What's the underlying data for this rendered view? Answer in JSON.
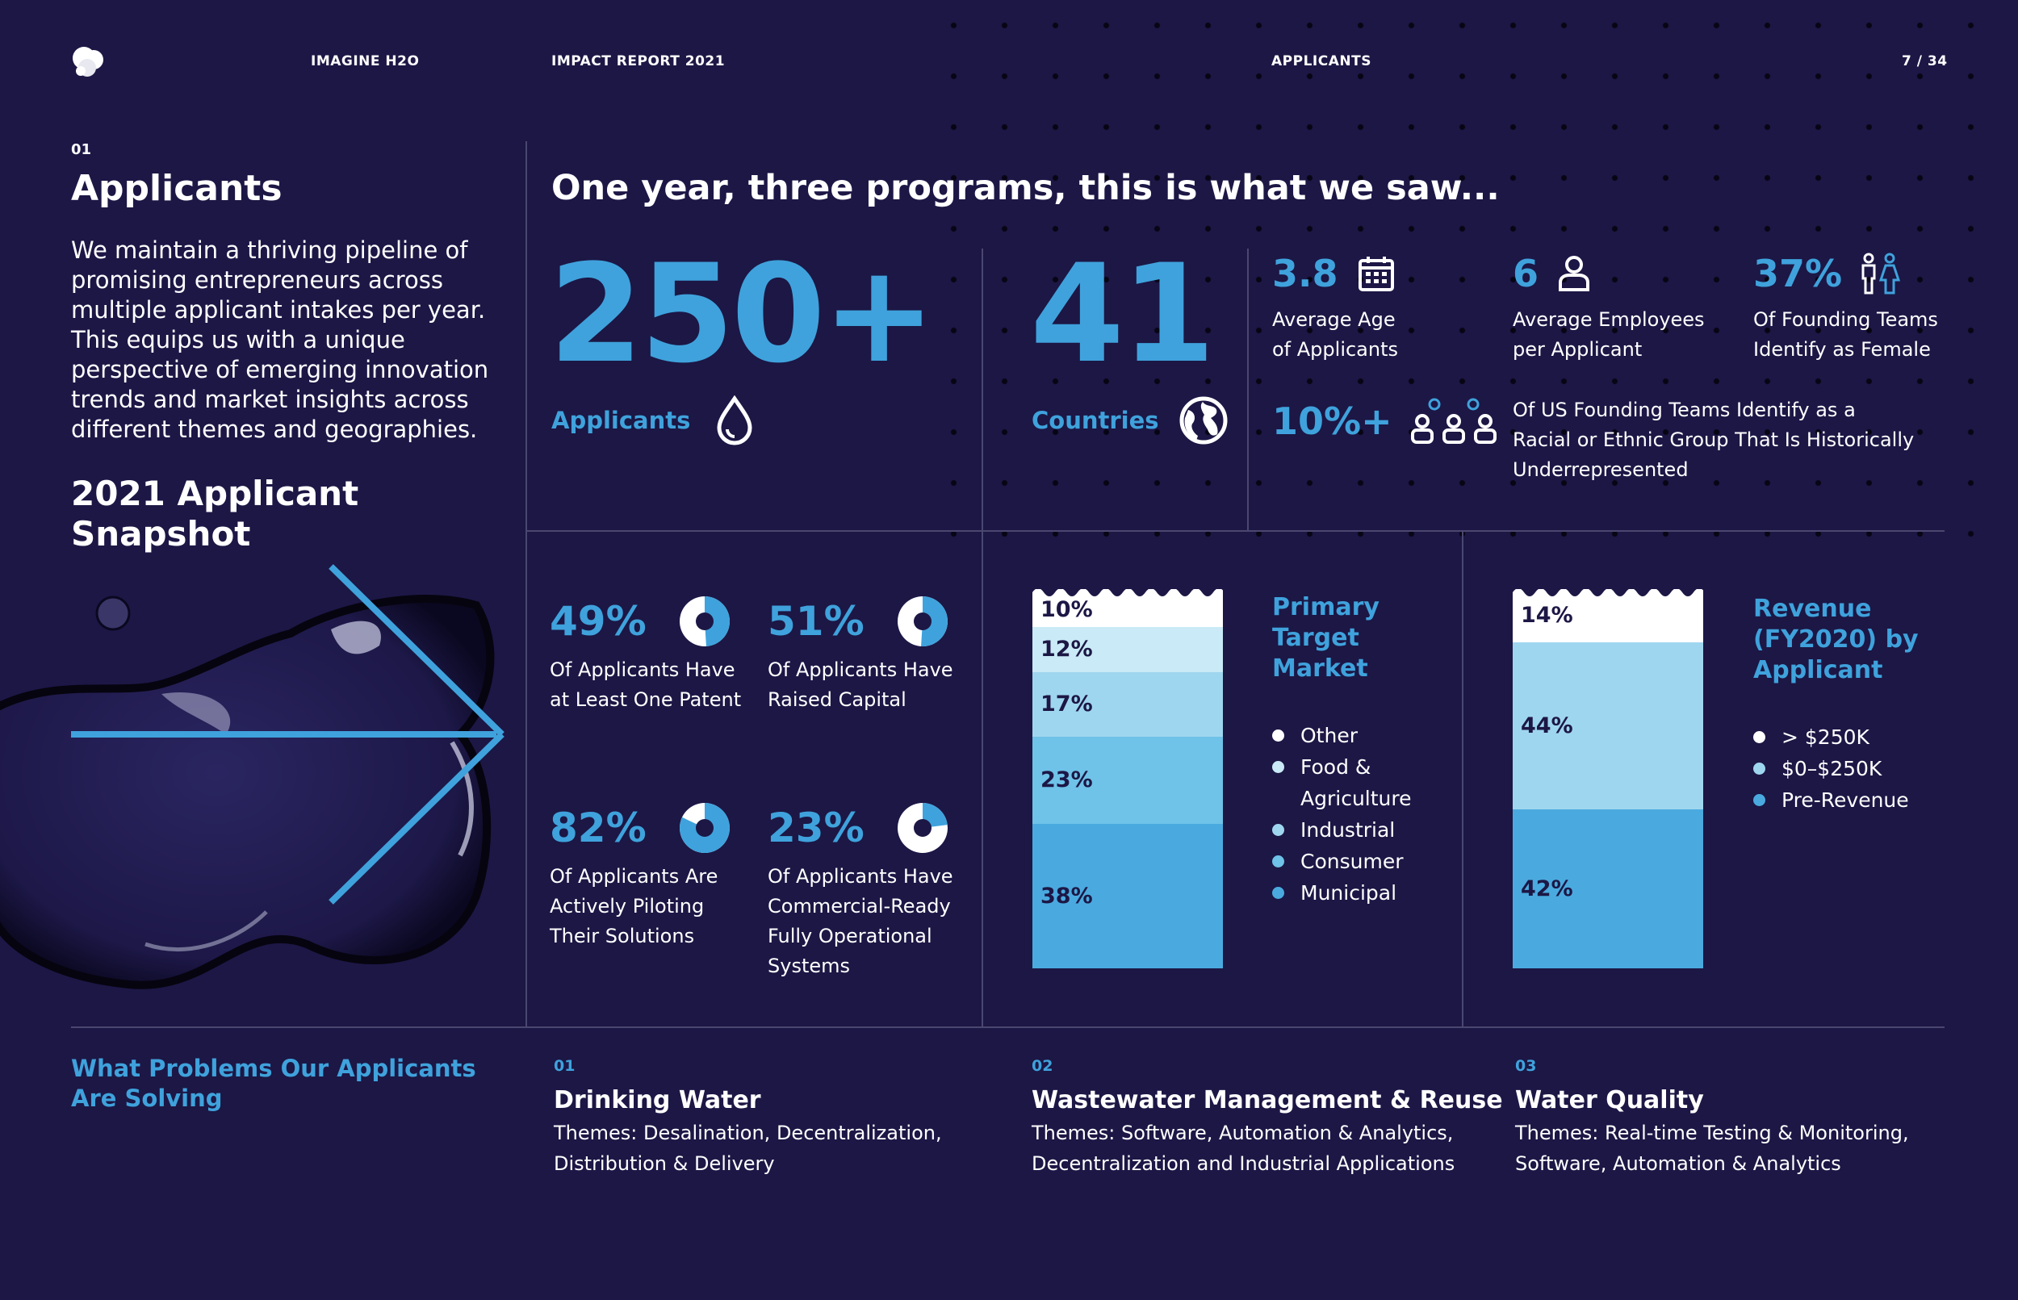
{
  "header": {
    "brand": "IMAGINE H2O",
    "report": "IMPACT REPORT 2021",
    "section": "APPLICANTS",
    "page": "7 / 34"
  },
  "sidebar": {
    "section_number": "01",
    "title": "Applicants",
    "intro": "We maintain a thriving pipeline of promising entrepreneurs across multiple applicant intakes per year. This equips us with a unique perspective of emerging innovation trends and market insights across different themes and geographies.",
    "snapshot_line1": "2021 Applicant",
    "snapshot_line2": "Snapshot"
  },
  "main_title": "One year, three programs, this is what we saw...",
  "headline_stats": {
    "applicants": {
      "value": "250+",
      "label": "Applicants",
      "icon": "water-drop-icon"
    },
    "countries": {
      "value": "41",
      "label": "Countries",
      "icon": "globe-icon"
    }
  },
  "small_stats": {
    "age": {
      "value": "3.8",
      "line1": "Average Age",
      "line2": "of Applicants",
      "icon": "calendar-icon"
    },
    "employees": {
      "value": "6",
      "line1": "Average Employees",
      "line2": "per Applicant",
      "icon": "person-icon"
    },
    "female": {
      "value": "37%",
      "line1": "Of Founding Teams",
      "line2": "Identify as Female",
      "icon": "male-female-icon"
    },
    "underrep": {
      "value": "10%+",
      "line1": "Of US Founding Teams Identify as a",
      "line2": "Racial or Ethnic Group That Is Historically",
      "line3": "Underrepresented",
      "icon": "people-group-icon"
    }
  },
  "donut_stats": [
    {
      "value": "49%",
      "line1": "Of Applicants Have",
      "line2": "at Least One Patent",
      "line3": "",
      "line4": "",
      "fraction": 0.49
    },
    {
      "value": "51%",
      "line1": "Of Applicants Have",
      "line2": "Raised Capital",
      "line3": "",
      "line4": "",
      "fraction": 0.51
    },
    {
      "value": "82%",
      "line1": "Of Applicants Are",
      "line2": "Actively Piloting",
      "line3": "Their Solutions",
      "line4": "",
      "fraction": 0.82
    },
    {
      "value": "23%",
      "line1": "Of Applicants Have",
      "line2": "Commercial-Ready",
      "line3": "Fully Operational",
      "line4": "Systems",
      "fraction": 0.23
    }
  ],
  "chart_data": [
    {
      "type": "bar",
      "stacked": true,
      "title": "Primary Target Market",
      "categories": [
        "Other",
        "Food & Agriculture",
        "Industrial",
        "Consumer",
        "Municipal"
      ],
      "values": [
        10,
        12,
        17,
        23,
        38
      ],
      "labels": [
        "10%",
        "12%",
        "17%",
        "23%",
        "38%"
      ],
      "colors": [
        "#ffffff",
        "#c9eaf6",
        "#9fd6ef",
        "#6fc2e8",
        "#4aaadf"
      ],
      "legend_dot_colors": [
        "#ffffff",
        "#c9eaf6",
        "#9fd6ef",
        "#6fc2e8",
        "#4aaadf"
      ]
    },
    {
      "type": "bar",
      "stacked": true,
      "title": "Revenue (FY2020) by Applicant",
      "categories": [
        "> $250K",
        "$0–$250K",
        "Pre-Revenue"
      ],
      "values": [
        14,
        44,
        42
      ],
      "labels": [
        "14%",
        "44%",
        "42%"
      ],
      "colors": [
        "#ffffff",
        "#9fd6ef",
        "#4aaadf"
      ],
      "legend_dot_colors": [
        "#ffffff",
        "#9fd6ef",
        "#4aaadf"
      ]
    }
  ],
  "problems": {
    "heading": "What Problems Our Applicants Are Solving",
    "items": [
      {
        "num": "01",
        "title": "Drinking Water",
        "line1": "Themes: Desalination, Decentralization,",
        "line2": "Distribution & Delivery"
      },
      {
        "num": "02",
        "title": "Wastewater Management & Reuse",
        "line1": "Themes: Software, Automation & Analytics,",
        "line2": "Decentralization and Industrial Applications"
      },
      {
        "num": "03",
        "title": "Water Quality",
        "line1": "Themes: Real-time Testing & Monitoring,",
        "line2": "Software, Automation & Analytics"
      }
    ]
  },
  "colors": {
    "background": "#1c1745",
    "accent": "#3fa2dc",
    "divider": "#4a4770"
  }
}
